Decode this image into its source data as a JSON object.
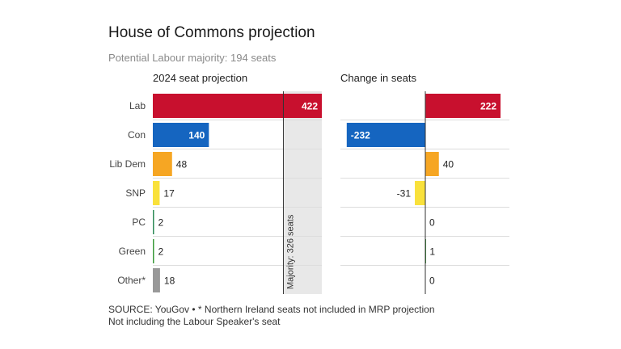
{
  "header": {
    "title": "House of Commons projection",
    "subtitle": "Potential Labour majority: 194 seats"
  },
  "footer": {
    "source_line": "SOURCE: YouGov • * Northern Ireland seats not included in MRP projection",
    "note_line": "Not including the Labour Speaker's seat"
  },
  "colors": {
    "Lab": "#c8102e",
    "Con": "#1565c0",
    "Lib Dem": "#f6a623",
    "SNP": "#f9e13b",
    "PC": "#2e8b57",
    "Green": "#3a9a3a",
    "Other*": "#999999",
    "majority_shade": "#e8e8e8",
    "grid": "#dddddd"
  },
  "chart_data": [
    {
      "type": "bar",
      "orientation": "horizontal",
      "title": "2024 seat projection",
      "categories": [
        "Lab",
        "Con",
        "Lib Dem",
        "SNP",
        "PC",
        "Green",
        "Other*"
      ],
      "values": [
        422,
        140,
        48,
        17,
        2,
        2,
        18
      ],
      "xlim": [
        0,
        422
      ],
      "annotation": {
        "label": "Majority: 326 seats",
        "value": 326
      }
    },
    {
      "type": "bar",
      "orientation": "horizontal",
      "title": "Change in seats",
      "categories": [
        "Lab",
        "Con",
        "Lib Dem",
        "SNP",
        "PC",
        "Green",
        "Other*"
      ],
      "values": [
        222,
        -232,
        40,
        -31,
        0,
        1,
        0
      ],
      "value_labels": [
        "222",
        "-232",
        "40",
        "-31",
        "0",
        "1",
        "0"
      ]
    }
  ]
}
